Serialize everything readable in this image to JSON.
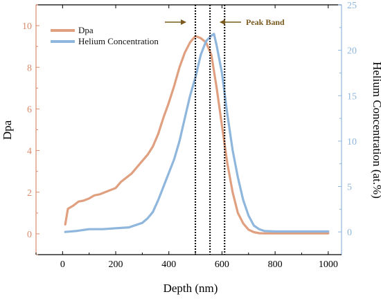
{
  "chart_data": {
    "type": "line",
    "xlabel": "Depth (nm)",
    "ylabel_left": "Dpa",
    "ylabel_right": "Helium Concentration (at.%)",
    "xlim": [
      -100,
      1050
    ],
    "ylim_left": [
      -1,
      11
    ],
    "ylim_right": [
      -2.5,
      25
    ],
    "x_ticks": [
      0,
      200,
      400,
      600,
      800,
      1000
    ],
    "y_left_ticks": [
      0,
      2,
      4,
      6,
      8,
      10
    ],
    "y_right_ticks": [
      0,
      5,
      10,
      15,
      20,
      25
    ],
    "grid": false,
    "legend_position": "top-left",
    "annotation": {
      "label": "Peak Band",
      "lines_x": [
        500,
        555,
        610
      ],
      "color": "#7a5a1e"
    },
    "colors": {
      "dpa": "#e0a080",
      "helium": "#8fb6dc",
      "left_axis": "#d98a6b",
      "right_axis": "#8fb6dc",
      "axis": "#000000"
    },
    "series": [
      {
        "name": "Dpa",
        "axis": "left",
        "x": [
          10,
          20,
          40,
          60,
          80,
          100,
          120,
          140,
          160,
          180,
          200,
          220,
          240,
          260,
          280,
          300,
          320,
          340,
          360,
          380,
          400,
          420,
          440,
          460,
          480,
          500,
          520,
          540,
          560,
          580,
          600,
          620,
          640,
          660,
          680,
          700,
          720,
          740,
          760,
          800,
          850,
          900,
          950,
          1000
        ],
        "y": [
          0.45,
          1.2,
          1.35,
          1.55,
          1.6,
          1.7,
          1.85,
          1.9,
          2.0,
          2.1,
          2.2,
          2.5,
          2.7,
          2.9,
          3.2,
          3.5,
          3.8,
          4.2,
          4.8,
          5.6,
          6.3,
          7.1,
          8.0,
          8.7,
          9.2,
          9.5,
          9.4,
          9.2,
          8.6,
          7.0,
          5.2,
          3.4,
          2.0,
          1.0,
          0.5,
          0.2,
          0.08,
          0.03,
          0.02,
          0.02,
          0.02,
          0.02,
          0.02,
          0.02
        ]
      },
      {
        "name": "Helium Concentration",
        "axis": "right",
        "x": [
          10,
          50,
          100,
          150,
          200,
          250,
          280,
          300,
          320,
          340,
          360,
          380,
          400,
          420,
          440,
          460,
          480,
          500,
          520,
          540,
          560,
          570,
          580,
          600,
          620,
          640,
          660,
          680,
          700,
          720,
          740,
          760,
          800,
          850,
          900,
          950,
          1000
        ],
        "y": [
          0,
          0.1,
          0.3,
          0.3,
          0.4,
          0.5,
          0.8,
          1.0,
          1.5,
          2.2,
          3.5,
          5.0,
          6.5,
          8.0,
          10.0,
          12.5,
          15.0,
          17.0,
          19.5,
          21.0,
          21.6,
          21.8,
          20.5,
          17.5,
          13.0,
          9.0,
          6.0,
          3.5,
          1.8,
          0.7,
          0.3,
          0.1,
          0.05,
          0.05,
          0.05,
          0.05,
          0.05
        ]
      }
    ]
  }
}
